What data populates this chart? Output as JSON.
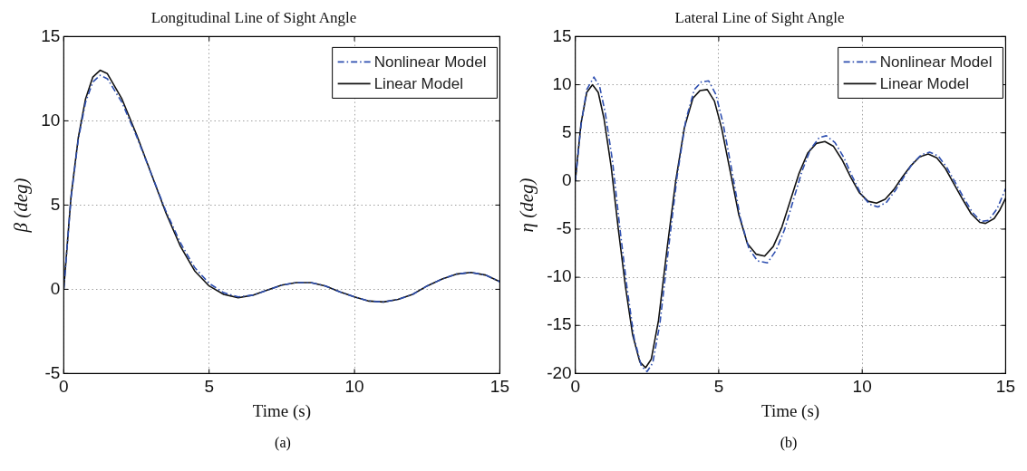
{
  "chart_data": [
    {
      "type": "line",
      "title": "Longitudinal Line of Sight Angle",
      "xlabel": "Time (s)",
      "ylabel": "β (deg)",
      "xlim": [
        0,
        15
      ],
      "ylim": [
        -5,
        15
      ],
      "xticks": [
        0,
        5,
        10,
        15
      ],
      "yticks": [
        -5,
        0,
        5,
        10,
        15
      ],
      "grid": true,
      "legend": "top right",
      "marker": "none",
      "annotations": [
        "(a)"
      ],
      "series": [
        {
          "name": "Nonlinear Model",
          "color": "#2e4fb0",
          "line_style": "dashed",
          "x": [
            0,
            0.25,
            0.5,
            0.75,
            1,
            1.25,
            1.5,
            2,
            2.5,
            3,
            3.5,
            4,
            4.5,
            5,
            5.5,
            6,
            6.5,
            7,
            7.5,
            8,
            8.5,
            9,
            9.5,
            10,
            10.5,
            11,
            11.5,
            12,
            12.5,
            13,
            13.5,
            14,
            14.5,
            15
          ],
          "values": [
            0,
            5.4,
            8.9,
            11.1,
            12.3,
            12.7,
            12.5,
            11.1,
            9.1,
            6.9,
            4.7,
            2.8,
            1.3,
            0.35,
            -0.2,
            -0.45,
            -0.35,
            -0.05,
            0.25,
            0.4,
            0.4,
            0.2,
            -0.15,
            -0.45,
            -0.7,
            -0.75,
            -0.6,
            -0.3,
            0.2,
            0.6,
            0.9,
            1.0,
            0.85,
            0.45
          ]
        },
        {
          "name": "Linear Model",
          "color": "#111111",
          "line_style": "solid",
          "x": [
            0,
            0.25,
            0.5,
            0.75,
            1,
            1.25,
            1.5,
            2,
            2.5,
            3,
            3.5,
            4,
            4.5,
            5,
            5.5,
            6,
            6.5,
            7,
            7.5,
            8,
            8.5,
            9,
            9.5,
            10,
            10.5,
            11,
            11.5,
            12,
            12.5,
            13,
            13.5,
            14,
            14.5,
            15
          ],
          "values": [
            0,
            5.5,
            9,
            11.3,
            12.6,
            13,
            12.8,
            11.3,
            9.2,
            6.9,
            4.6,
            2.6,
            1.1,
            0.2,
            -0.3,
            -0.5,
            -0.35,
            -0.05,
            0.25,
            0.4,
            0.4,
            0.2,
            -0.15,
            -0.45,
            -0.7,
            -0.75,
            -0.6,
            -0.3,
            0.2,
            0.6,
            0.9,
            1.0,
            0.85,
            0.45
          ]
        }
      ]
    },
    {
      "type": "line",
      "title": "Lateral Line of Sight Angle",
      "xlabel": "Time (s)",
      "ylabel": "η (deg)",
      "xlim": [
        0,
        15
      ],
      "ylim": [
        -20,
        15
      ],
      "xticks": [
        0,
        5,
        10,
        15
      ],
      "yticks": [
        -20,
        -15,
        -10,
        -5,
        0,
        5,
        10,
        15
      ],
      "grid": true,
      "legend": "top right",
      "marker": "none",
      "annotations": [
        "(b)"
      ],
      "series": [
        {
          "name": "Nonlinear Model",
          "color": "#2e4fb0",
          "line_style": "dashed",
          "x": [
            0,
            0.2,
            0.4,
            0.65,
            0.85,
            1.05,
            1.3,
            1.55,
            1.8,
            2.05,
            2.3,
            2.5,
            2.7,
            2.95,
            3.25,
            3.55,
            3.85,
            4.15,
            4.4,
            4.65,
            4.9,
            5.15,
            5.45,
            5.75,
            6.05,
            6.35,
            6.7,
            7,
            7.3,
            7.6,
            7.9,
            8.2,
            8.5,
            8.75,
            9.05,
            9.35,
            9.65,
            9.95,
            10.25,
            10.55,
            10.85,
            11.15,
            11.45,
            11.75,
            12.05,
            12.35,
            12.65,
            12.95,
            13.25,
            13.55,
            13.85,
            14.15,
            14.4,
            14.7,
            15
          ],
          "values": [
            0,
            5.8,
            9.5,
            10.8,
            9.8,
            7,
            2,
            -4.8,
            -11,
            -16.3,
            -19.2,
            -19.8,
            -18.9,
            -14.8,
            -7,
            0.5,
            6.3,
            9.5,
            10.3,
            10.4,
            9,
            6,
            1.2,
            -3.8,
            -7,
            -8.3,
            -8.5,
            -7.2,
            -5,
            -2,
            1,
            3.3,
            4.5,
            4.7,
            4,
            2.5,
            0.5,
            -1.3,
            -2.4,
            -2.7,
            -2.2,
            -1,
            0.4,
            1.8,
            2.7,
            3,
            2.6,
            1.4,
            -0.2,
            -1.8,
            -3.3,
            -4.2,
            -4.1,
            -2.9,
            -0.8
          ]
        },
        {
          "name": "Linear Model",
          "color": "#111111",
          "line_style": "solid",
          "x": [
            0,
            0.2,
            0.4,
            0.6,
            0.8,
            1,
            1.25,
            1.5,
            1.75,
            2,
            2.25,
            2.45,
            2.65,
            2.9,
            3.2,
            3.5,
            3.8,
            4.1,
            4.35,
            4.6,
            4.85,
            5.1,
            5.4,
            5.7,
            6,
            6.3,
            6.6,
            6.9,
            7.2,
            7.5,
            7.8,
            8.1,
            8.4,
            8.7,
            9,
            9.3,
            9.6,
            9.9,
            10.2,
            10.5,
            10.8,
            11.1,
            11.4,
            11.7,
            12,
            12.3,
            12.6,
            12.9,
            13.2,
            13.5,
            13.8,
            14.1,
            14.3,
            14.6,
            14.8,
            15
          ],
          "values": [
            0,
            6,
            9.2,
            10,
            9.2,
            6.5,
            1.5,
            -5,
            -11,
            -16,
            -18.8,
            -19.4,
            -18.5,
            -14.5,
            -7,
            0,
            5.5,
            8.6,
            9.4,
            9.5,
            8.3,
            5.5,
            1,
            -3.5,
            -6.5,
            -7.6,
            -7.8,
            -6.8,
            -4.8,
            -2,
            0.8,
            2.9,
            3.9,
            4.1,
            3.6,
            2.2,
            0.4,
            -1.2,
            -2.1,
            -2.3,
            -1.9,
            -0.9,
            0.4,
            1.6,
            2.5,
            2.8,
            2.4,
            1.3,
            -0.3,
            -1.9,
            -3.4,
            -4.3,
            -4.4,
            -3.9,
            -3,
            -1.8
          ]
        }
      ]
    }
  ]
}
